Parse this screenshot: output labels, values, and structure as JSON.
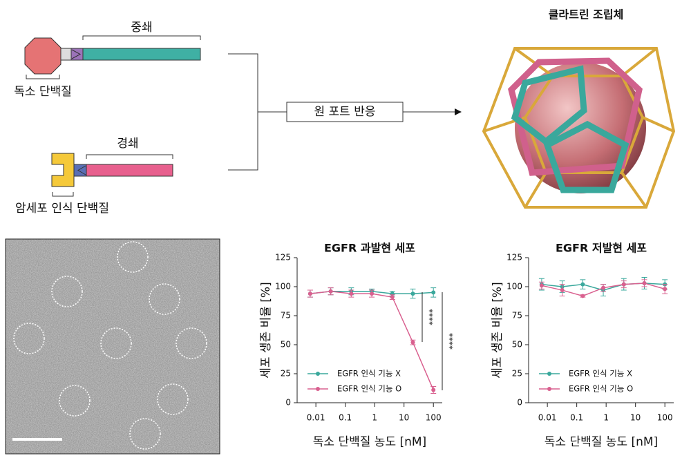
{
  "diagram": {
    "heavy_chain": "중쇄",
    "toxin": "독소 단백질",
    "light_chain": "경쇄",
    "recognizer": "암세포 인식 단백질",
    "reaction": "원 포트 반응",
    "assembly": "클라트린 조립체"
  },
  "chart_data": [
    {
      "type": "line",
      "title": "EGFR 과발현 세포",
      "xlabel": "독소 단백질 농도 [nM]",
      "ylabel": "세포 생존 비율 [%]",
      "x": [
        0.0064,
        0.032,
        0.16,
        0.8,
        4,
        20,
        100
      ],
      "xscale": "log",
      "xlim": [
        0.0023,
        200
      ],
      "xticks": [
        0.01,
        0.1,
        1,
        10,
        100
      ],
      "ylim": [
        0,
        125
      ],
      "yticks": [
        0,
        25,
        50,
        75,
        100,
        125
      ],
      "series": [
        {
          "name": "EGFR 인식 기능 X",
          "color": "#3aa89c",
          "values": [
            94,
            96,
            96,
            96,
            94,
            94,
            95
          ],
          "errors": [
            3,
            3,
            3,
            2,
            2,
            4,
            4
          ]
        },
        {
          "name": "EGFR 인식 기능 O",
          "color": "#d9608f",
          "values": [
            94,
            96,
            94,
            94,
            91,
            52,
            11
          ],
          "errors": [
            3,
            3,
            3,
            3,
            2,
            2,
            3
          ]
        }
      ],
      "annotations": [
        "****",
        "****"
      ]
    },
    {
      "type": "line",
      "title": "EGFR 저발현 세포",
      "xlabel": "독소 단백질 농도 [nM]",
      "ylabel": "세포 생존 비율 [%]",
      "x": [
        0.0064,
        0.032,
        0.16,
        0.8,
        4,
        20,
        100
      ],
      "xscale": "log",
      "xlim": [
        0.0023,
        200
      ],
      "xticks": [
        0.01,
        0.1,
        1,
        10,
        100
      ],
      "ylim": [
        0,
        125
      ],
      "yticks": [
        0,
        25,
        50,
        75,
        100,
        125
      ],
      "series": [
        {
          "name": "EGFR 인식 기능 X",
          "color": "#3aa89c",
          "values": [
            102,
            100,
            102,
            97,
            102,
            103,
            102
          ],
          "errors": [
            5,
            5,
            4,
            5,
            5,
            5,
            4
          ]
        },
        {
          "name": "EGFR 인식 기능 O",
          "color": "#d9608f",
          "values": [
            101,
            97,
            92,
            99,
            102,
            103,
            98
          ],
          "errors": [
            3,
            5,
            1,
            3,
            3,
            3,
            4
          ]
        }
      ]
    }
  ]
}
